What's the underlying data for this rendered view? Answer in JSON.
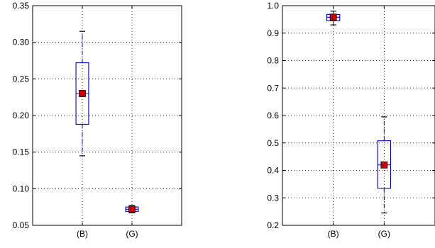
{
  "chart_data": [
    {
      "type": "boxplot",
      "categories": [
        "(B)",
        "(G)"
      ],
      "ylim": [
        0.05,
        0.35
      ],
      "yticks": [
        "0.05",
        "0.10",
        "0.15",
        "0.20",
        "0.25",
        "0.30",
        "0.35"
      ],
      "grid": true,
      "boxes": [
        {
          "label": "(B)",
          "whisker_low": 0.145,
          "q1": 0.188,
          "median": 0.23,
          "q3": 0.272,
          "whisker_high": 0.315,
          "mean": 0.23
        },
        {
          "label": "(G)",
          "whisker_low": 0.067,
          "q1": 0.069,
          "median": 0.072,
          "q3": 0.075,
          "whisker_high": 0.077,
          "mean": 0.072
        }
      ]
    },
    {
      "type": "boxplot",
      "categories": [
        "(B)",
        "(G)"
      ],
      "ylim": [
        0.2,
        1.0
      ],
      "yticks": [
        "0.2",
        "0.3",
        "0.4",
        "0.5",
        "0.6",
        "0.7",
        "0.8",
        "0.9",
        "1.0"
      ],
      "grid": true,
      "boxes": [
        {
          "label": "(B)",
          "whisker_low": 0.93,
          "q1": 0.945,
          "median": 0.958,
          "q3": 0.968,
          "whisker_high": 0.98,
          "mean": 0.958
        },
        {
          "label": "(G)",
          "whisker_low": 0.245,
          "q1": 0.335,
          "median": 0.42,
          "q3": 0.508,
          "whisker_high": 0.595,
          "mean": 0.42
        }
      ]
    }
  ],
  "colors": {
    "box": "#0000cc",
    "whisker": "#0000cc",
    "cap": "#000000",
    "mean_fill": "#cc0000",
    "mean_stroke": "#000000",
    "grid": "#000000"
  }
}
